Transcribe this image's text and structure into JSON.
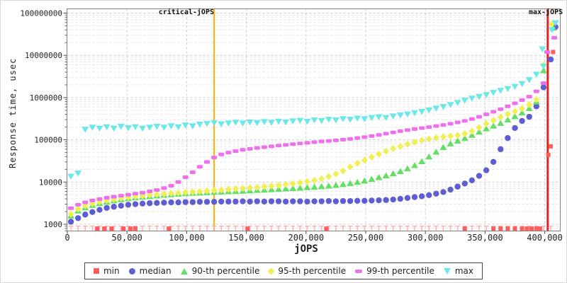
{
  "chart_data": {
    "type": "scatter",
    "title": "",
    "xlabel": "jOPS",
    "ylabel": "Response time, usec",
    "grid": true,
    "legend_position": "bottom",
    "x_axis": {
      "min": 0,
      "max": 413000,
      "ticks": [
        {
          "value": 0,
          "label": "0"
        },
        {
          "value": 50000,
          "label": "50,000"
        },
        {
          "value": 100000,
          "label": "100,000"
        },
        {
          "value": 150000,
          "label": "150,000"
        },
        {
          "value": 200000,
          "label": "200,000"
        },
        {
          "value": 250000,
          "label": "250,000"
        },
        {
          "value": 300000,
          "label": "300,000"
        },
        {
          "value": 350000,
          "label": "350,000"
        },
        {
          "value": 400000,
          "label": "400,000"
        }
      ]
    },
    "y_axis": {
      "scale": "log",
      "min": 700,
      "max": 130000000,
      "ticks": [
        {
          "value": 1000,
          "label": "1000"
        },
        {
          "value": 10000,
          "label": "10000"
        },
        {
          "value": 100000,
          "label": "100000"
        },
        {
          "value": 1000000,
          "label": "1000000"
        },
        {
          "value": 10000000,
          "label": "10000000"
        },
        {
          "value": 100000000,
          "label": "100000000"
        }
      ]
    },
    "reference_lines": [
      {
        "name": "critical-jOPS",
        "x": 123000,
        "color": "#ffb000"
      },
      {
        "name": "max-jOPS",
        "x": 402500,
        "color": "#e82222"
      }
    ],
    "x": [
      3000,
      9000,
      15000,
      21000,
      27000,
      33000,
      39000,
      45000,
      51000,
      57000,
      63000,
      69000,
      75000,
      81000,
      87000,
      93000,
      99000,
      105000,
      111000,
      117000,
      123000,
      129000,
      135000,
      141000,
      147000,
      153000,
      159000,
      165000,
      171000,
      177000,
      183000,
      189000,
      195000,
      201000,
      207000,
      213000,
      219000,
      225000,
      231000,
      237000,
      243000,
      249000,
      255000,
      261000,
      267000,
      273000,
      279000,
      285000,
      291000,
      297000,
      303000,
      309000,
      315000,
      321000,
      327000,
      333000,
      339000,
      345000,
      351000,
      357000,
      363000,
      369000,
      375000,
      381000,
      387000,
      393000,
      399000
    ],
    "series": [
      {
        "name": "min",
        "marker": "square",
        "color": "#ff5c5c",
        "floor_tick_color": "#ffadad",
        "floor_value": 900,
        "floor_x_start": 3000,
        "floor_x_end": 405000,
        "floor_x_step": 6000,
        "points": [
          [
            25000,
            790
          ],
          [
            31000,
            790
          ],
          [
            37000,
            790
          ],
          [
            47000,
            790
          ],
          [
            53000,
            790
          ],
          [
            57000,
            790
          ],
          [
            85000,
            790
          ],
          [
            151000,
            790
          ],
          [
            217000,
            790
          ],
          [
            333000,
            790
          ],
          [
            357000,
            790
          ],
          [
            363000,
            790
          ],
          [
            369000,
            790
          ],
          [
            375000,
            790
          ],
          [
            381000,
            790
          ],
          [
            385000,
            790
          ],
          [
            389000,
            790
          ],
          [
            393000,
            790
          ],
          [
            396000,
            790
          ],
          [
            403000,
            44000
          ],
          [
            405000,
            70000
          ],
          [
            407000,
            12000000
          ]
        ]
      },
      {
        "name": "median",
        "marker": "circle",
        "color": "#5e5ed2",
        "values": [
          1150,
          1400,
          1700,
          1950,
          2200,
          2450,
          2600,
          2750,
          2900,
          3000,
          3100,
          3150,
          3200,
          3250,
          3300,
          3300,
          3350,
          3350,
          3400,
          3400,
          3400,
          3450,
          3450,
          3450,
          3500,
          3450,
          3500,
          3450,
          3500,
          3500,
          3450,
          3500,
          3500,
          3450,
          3500,
          3500,
          3550,
          3500,
          3550,
          3550,
          3600,
          3600,
          3650,
          3700,
          3750,
          3850,
          4000,
          4200,
          4400,
          4600,
          4900,
          5300,
          5800,
          6600,
          7800,
          9200,
          11000,
          14000,
          19000,
          30000,
          60000,
          110000,
          190000,
          280000,
          350000,
          620000,
          1750000
        ],
        "extra_points": [
          [
            405000,
            8000000
          ],
          [
            409000,
            47000000
          ]
        ]
      },
      {
        "name": "90-th percentile",
        "marker": "triangle-up",
        "color": "#63e063",
        "values": [
          1600,
          2100,
          2500,
          2850,
          3150,
          3400,
          3650,
          3900,
          4100,
          4300,
          4450,
          4600,
          4800,
          4950,
          5100,
          5250,
          5400,
          5500,
          5600,
          5700,
          5800,
          5900,
          6000,
          6100,
          6200,
          6300,
          6450,
          6550,
          6700,
          6850,
          7000,
          7150,
          7300,
          7500,
          7700,
          7900,
          8200,
          8500,
          8900,
          9400,
          10000,
          10800,
          11800,
          13000,
          14300,
          16000,
          18000,
          21000,
          25000,
          31000,
          40000,
          52000,
          67000,
          82000,
          95000,
          110000,
          130000,
          155000,
          185000,
          215000,
          250000,
          300000,
          360000,
          440000,
          560000,
          800000,
          4400000
        ],
        "extra_points": [
          [
            407000,
            45000000
          ]
        ]
      },
      {
        "name": "95-th percentile",
        "marker": "diamond",
        "color": "#f0f055",
        "values": [
          1750,
          2300,
          2750,
          3100,
          3400,
          3650,
          3900,
          4150,
          4350,
          4550,
          4750,
          4950,
          5100,
          5250,
          5400,
          5550,
          5700,
          5850,
          6000,
          6150,
          6300,
          6500,
          6700,
          6900,
          7100,
          7300,
          7500,
          7800,
          8100,
          8400,
          8800,
          9200,
          9700,
          10300,
          11000,
          12000,
          13500,
          15500,
          18500,
          23000,
          28000,
          33000,
          39000,
          46000,
          54000,
          62000,
          70000,
          79000,
          88000,
          97000,
          105000,
          112000,
          118000,
          123000,
          128000,
          140000,
          160000,
          195000,
          240000,
          290000,
          345000,
          405000,
          470000,
          550000,
          680000,
          900000,
          5900000
        ],
        "extra_points": [
          [
            406000,
            55000000
          ]
        ]
      },
      {
        "name": "99-th percentile",
        "marker": "bar",
        "color": "#f06ef0",
        "values": [
          2400,
          2900,
          3300,
          3650,
          3950,
          4250,
          4500,
          4750,
          5000,
          5300,
          5600,
          6000,
          6500,
          7200,
          8200,
          10000,
          13000,
          17000,
          23000,
          30000,
          38000,
          45000,
          50000,
          54000,
          58000,
          61000,
          64000,
          67000,
          70000,
          73000,
          76000,
          79000,
          82000,
          85000,
          88000,
          91000,
          94000,
          97000,
          101000,
          105000,
          110000,
          116000,
          123000,
          131000,
          140000,
          150000,
          160000,
          170000,
          180000,
          190000,
          200000,
          212000,
          225000,
          240000,
          258000,
          280000,
          310000,
          350000,
          400000,
          460000,
          530000,
          620000,
          730000,
          870000,
          1050000,
          1400000,
          2200000
        ],
        "extra_points": [
          [
            402000,
            12000000
          ],
          [
            408000,
            26000000
          ]
        ]
      },
      {
        "name": "max",
        "marker": "triangle-down",
        "color": "#6ce8e8",
        "values": [
          13500,
          16000,
          175000,
          195000,
          185000,
          200000,
          185000,
          205000,
          190000,
          200000,
          185000,
          195000,
          205000,
          195000,
          210000,
          200000,
          220000,
          210000,
          230000,
          240000,
          250000,
          235000,
          245000,
          255000,
          245000,
          260000,
          250000,
          265000,
          255000,
          270000,
          260000,
          275000,
          285000,
          270000,
          290000,
          280000,
          300000,
          290000,
          310000,
          300000,
          320000,
          310000,
          330000,
          345000,
          330000,
          360000,
          380000,
          400000,
          430000,
          460000,
          500000,
          550000,
          600000,
          670000,
          750000,
          850000,
          950000,
          1050000,
          1150000,
          1300000,
          1450000,
          1600000,
          1800000,
          2100000,
          2600000,
          3500000,
          5500000
        ],
        "extra_points": [
          [
            398000,
            14000000
          ],
          [
            406000,
            40000000
          ],
          [
            409000,
            58000000
          ]
        ]
      }
    ]
  }
}
